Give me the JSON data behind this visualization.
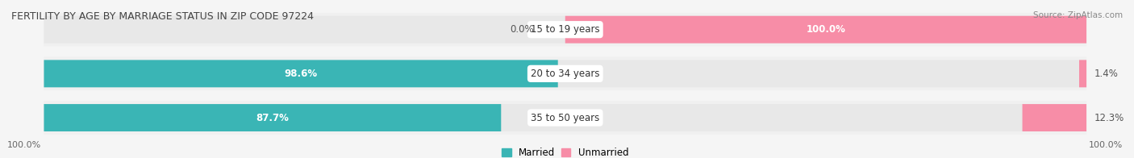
{
  "title": "FERTILITY BY AGE BY MARRIAGE STATUS IN ZIP CODE 97224",
  "source": "Source: ZipAtlas.com",
  "rows": [
    {
      "label": "15 to 19 years",
      "married_pct": 0.0,
      "unmarried_pct": 100.0,
      "married_label": "0.0%",
      "unmarried_label": "100.0%"
    },
    {
      "label": "20 to 34 years",
      "married_pct": 98.6,
      "unmarried_pct": 1.4,
      "married_label": "98.6%",
      "unmarried_label": "1.4%"
    },
    {
      "label": "35 to 50 years",
      "married_pct": 87.7,
      "unmarried_pct": 12.3,
      "married_label": "87.7%",
      "unmarried_label": "12.3%"
    }
  ],
  "married_color": "#3ab5b5",
  "unmarried_color": "#f78da7",
  "bar_bg_color": "#e8e8e8",
  "row_bg_color": "#f0f0f0",
  "label_bg_color": "#ffffff",
  "fig_bg_color": "#f5f5f5",
  "title_fontsize": 9,
  "source_fontsize": 7.5,
  "bar_label_fontsize": 8.5,
  "pct_label_fontsize": 8.5,
  "legend_fontsize": 8.5,
  "axis_label_fontsize": 8,
  "bar_height": 0.62,
  "x_left_label": "100.0%",
  "x_right_label": "100.0%"
}
